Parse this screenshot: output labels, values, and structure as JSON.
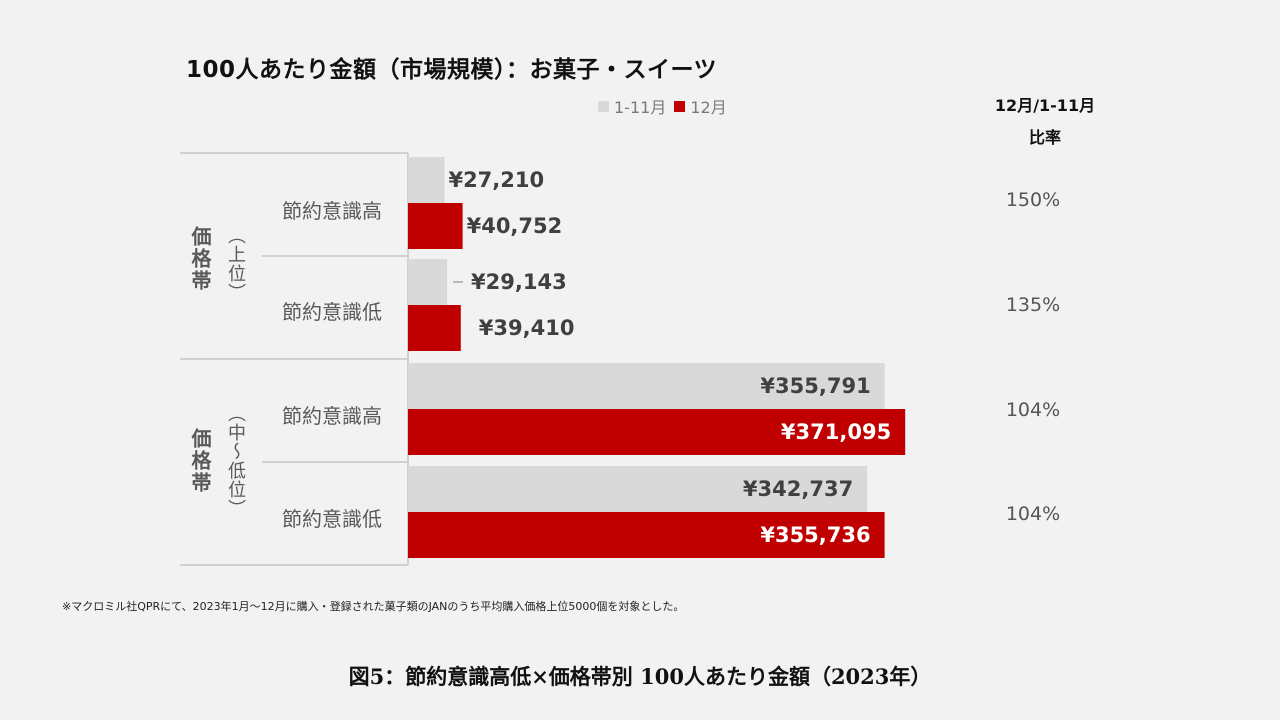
{
  "header": {
    "title": "100人あたり金額（市場規模）：お菓子・スイーツ",
    "ratio_header_line1": "12月/1-11月",
    "ratio_header_line2": "比率"
  },
  "legend": [
    {
      "label": "1-11月",
      "color": "#d9d9d9"
    },
    {
      "label": "12月",
      "color": "#c00000"
    }
  ],
  "groups": [
    {
      "label": "価格帯",
      "sub": "（上位）"
    },
    {
      "label": "価格帯",
      "sub": "（中〜低位）"
    }
  ],
  "rows": [
    {
      "label": "節約意識高",
      "ratio": "150%"
    },
    {
      "label": "節約意識低",
      "ratio": "135%"
    },
    {
      "label": "節約意識高",
      "ratio": "104%"
    },
    {
      "label": "節約意識低",
      "ratio": "104%"
    }
  ],
  "chart_data": {
    "type": "bar",
    "orientation": "horizontal",
    "title": "100人あたり金額（市場規模）：お菓子・スイーツ",
    "categories": [
      "価格帯（上位） 節約意識高",
      "価格帯（上位） 節約意識低",
      "価格帯（中〜低位） 節約意識高",
      "価格帯（中〜低位） 節約意識低"
    ],
    "series": [
      {
        "name": "1-11月",
        "color": "#d9d9d9",
        "values": [
          27210,
          29143,
          355791,
          342737
        ],
        "labels": [
          "¥27,210",
          "¥29,143",
          "¥355,791",
          "¥342,737"
        ]
      },
      {
        "name": "12月",
        "color": "#c00000",
        "values": [
          40752,
          39410,
          371095,
          355736
        ],
        "labels": [
          "¥40,752",
          "¥39,410",
          "¥371,095",
          "¥355,736"
        ]
      }
    ],
    "ratios": [
      "150%",
      "135%",
      "104%",
      "104%"
    ],
    "legend_position": "top",
    "grid": false
  },
  "footnote": "※マクロミル社QPRにて、2023年1月〜12月に購入・登録された菓子類のJANのうち平均購入価格上位5000個を対象とした。",
  "caption": "図5：節約意識高低×価格帯別 100人あたり金額（2023年）"
}
